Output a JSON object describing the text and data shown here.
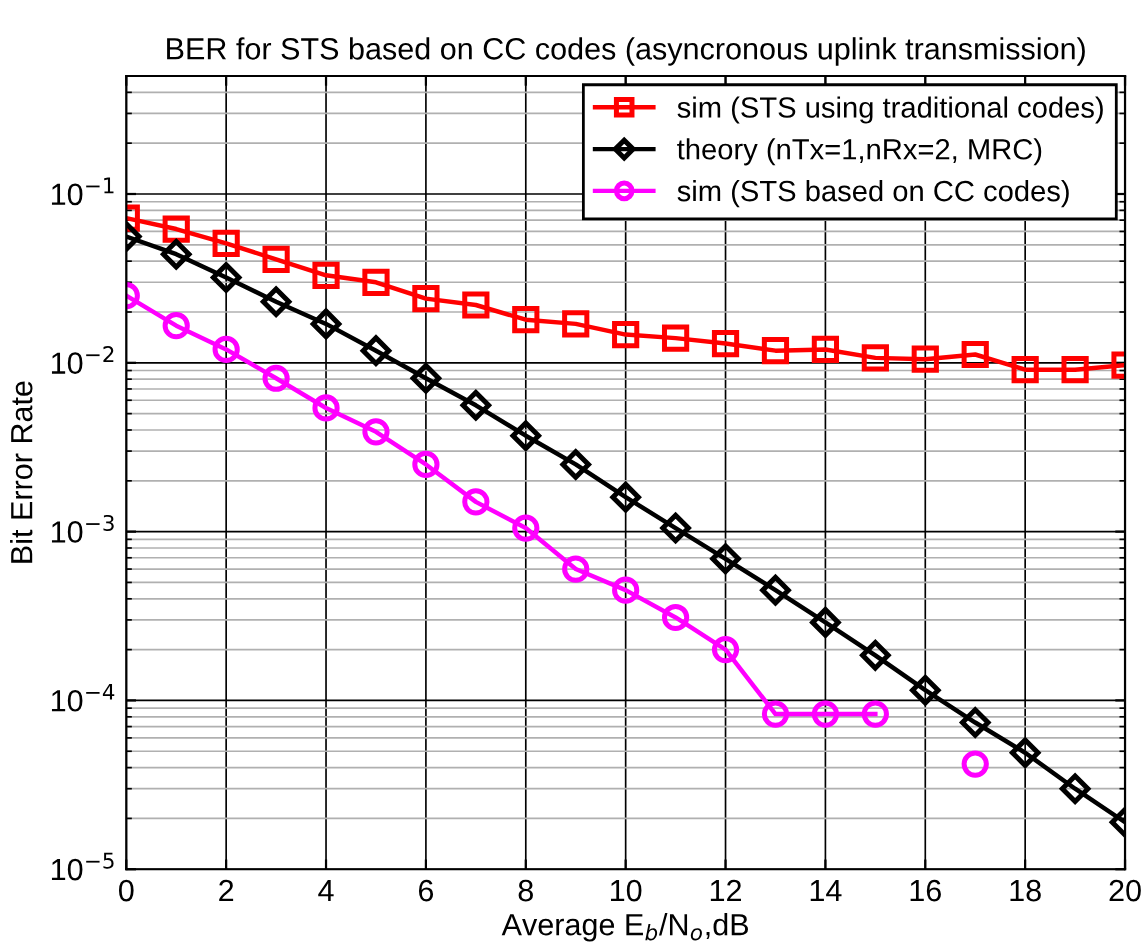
{
  "chart_data": {
    "type": "line",
    "title": "BER for STS based on CC codes (asyncronous uplink transmission)",
    "xlabel": "Average E$_{b}$/N$_{o}$,dB",
    "ylabel": "Bit Error Rate",
    "x": [
      0,
      1,
      2,
      3,
      4,
      5,
      6,
      7,
      8,
      9,
      10,
      11,
      12,
      13,
      14,
      15,
      16,
      17,
      18,
      19,
      20
    ],
    "series": [
      {
        "name": "sim (STS using traditional codes)",
        "color": "#ff0000",
        "marker": "square",
        "values": [
          0.072,
          0.062,
          0.051,
          0.041,
          0.033,
          0.03,
          0.024,
          0.022,
          0.018,
          0.017,
          0.0147,
          0.014,
          0.013,
          0.0118,
          0.012,
          0.0107,
          0.0105,
          0.0112,
          0.0091,
          0.0091,
          0.0097
        ]
      },
      {
        "name": "theory (nTx=1,nRx=2, MRC)",
        "color": "#000000",
        "marker": "diamond",
        "values": [
          0.056,
          0.044,
          0.032,
          0.023,
          0.017,
          0.0118,
          0.0081,
          0.0056,
          0.0037,
          0.0025,
          0.0016,
          0.00105,
          0.00069,
          0.00045,
          0.00029,
          0.000185,
          0.000115,
          7.4e-05,
          4.9e-05,
          3e-05,
          1.9e-05
        ]
      },
      {
        "name": "sim (STS based on CC codes)",
        "color": "#ff00ff",
        "marker": "circle",
        "values": [
          0.025,
          0.0166,
          0.012,
          0.0081,
          0.0054,
          0.0039,
          0.0025,
          0.0015,
          0.00105,
          0.0006,
          0.00045,
          0.00031,
          0.0002,
          8.3e-05,
          8.3e-05,
          8.3e-05,
          null,
          4.2e-05,
          null,
          null,
          null
        ]
      }
    ],
    "log": "y",
    "xlim": [
      0,
      20
    ],
    "xticks": [
      0,
      2,
      4,
      6,
      8,
      10,
      12,
      14,
      16,
      18,
      20
    ],
    "ylim": [
      1e-05,
      0.5
    ],
    "yticks": [
      {
        "value": 1e-05,
        "label": "10$^{−5}$"
      },
      {
        "value": 0.0001,
        "label": "10$^{−4}$"
      },
      {
        "value": 0.001,
        "label": "10$^{−3}$"
      },
      {
        "value": 0.01,
        "label": "10$^{−2}$"
      },
      {
        "value": 0.1,
        "label": "10$^{−1}$"
      }
    ],
    "grid": true,
    "legend": "top right",
    "line_style": "solid"
  }
}
